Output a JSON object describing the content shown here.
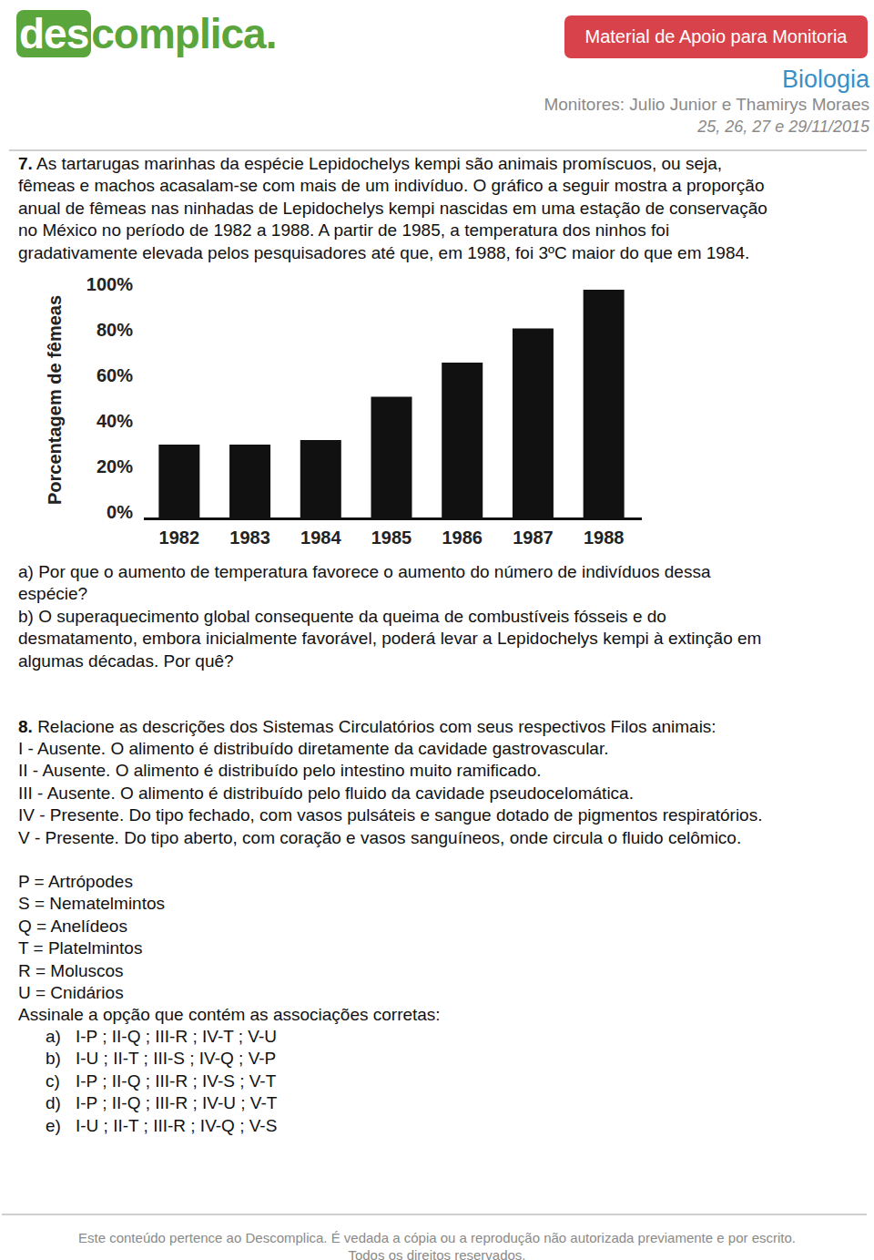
{
  "header": {
    "logo": [
      "des",
      "complica."
    ],
    "badge": "Material de Apoio para Monitoria",
    "subject": "Biologia",
    "monitors": "Monitores: Julio Junior e Thamirys Moraes",
    "dates": "25, 26, 27 e 29/11/2015"
  },
  "questions": [
    {
      "number": "7.",
      "lines": [
        "As tartarugas marinhas da espécie Lepidochelys kempi são animais promíscuos, ou seja,",
        "fêmeas e machos acasalam-se com mais de um indivíduo. O gráfico a seguir mostra a proporção",
        "anual de fêmeas nas ninhadas de Lepidochelys kempi nascidas em uma estação de conservação",
        "no México no período de 1982 a 1988. A partir de 1985, a temperatura dos ninhos foi",
        "gradativamente elevada pelos pesquisadores até que, em 1988, foi 3ºC maior do que em 1984."
      ],
      "items": [
        {
          "lines": [
            "a) Por que o aumento de temperatura favorece o aumento do número de indivíduos dessa",
            "espécie?"
          ]
        },
        {
          "lines": [
            "b) O superaquecimento global consequente da queima de combustíveis fósseis e do",
            "desmatamento, embora inicialmente favorável, poderá levar a Lepidochelys kempi à extinção em",
            "algumas décadas. Por quê?"
          ]
        }
      ]
    },
    {
      "number": "8.",
      "lines": [
        "Relacione as descrições dos Sistemas Circulatórios com seus respectivos Filos animais:"
      ],
      "descriptions": [
        "I - Ausente. O alimento é distribuído diretamente da cavidade gastrovascular.",
        "II - Ausente. O alimento é distribuído pelo intestino muito ramificado.",
        "III - Ausente. O alimento é distribuído pelo fluido da cavidade pseudocelomática.",
        "IV - Presente. Do tipo fechado, com vasos pulsáteis e sangue dotado de pigmentos respiratórios.",
        "V - Presente. Do tipo aberto, com coração e vasos sanguíneos, onde circula o fluido celômico."
      ],
      "phyla": [
        "P = Artrópodes",
        "S = Nematelmintos",
        "Q = Anelídeos",
        "T = Platelmintos",
        "R = Moluscos",
        "U = Cnidários"
      ],
      "prompt": "Assinale a opção que contém as associações corretas:",
      "options": [
        {
          "letter": "a)",
          "text": "I-P ; II-Q ; III-R ; IV-T ; V-U"
        },
        {
          "letter": "b)",
          "text": "I-U ; II-T ; III-S ; IV-Q ; V-P"
        },
        {
          "letter": "c)",
          "text": "I-P ; II-Q ; III-R ; IV-S ; V-T"
        },
        {
          "letter": "d)",
          "text": "I-P ; II-Q ; III-R ; IV-U ; V-T"
        },
        {
          "letter": "e)",
          "text": "I-U ; II-T ; III-R ; IV-Q ; V-S"
        }
      ]
    }
  ],
  "chart_data": {
    "type": "bar",
    "y_label": "Porcentagem de fêmeas",
    "categories": [
      "1982",
      "1983",
      "1984",
      "1985",
      "1986",
      "1987",
      "1988"
    ],
    "values": [
      32,
      32,
      34,
      53,
      68,
      83,
      100
    ],
    "color": "#111111",
    "ylim": [
      0,
      100
    ],
    "yticks": [
      {
        "value": 0,
        "label": "0%"
      },
      {
        "value": 20,
        "label": "20%"
      },
      {
        "value": 40,
        "label": "40%"
      },
      {
        "value": 60,
        "label": "60%"
      },
      {
        "value": 80,
        "label": "80%"
      },
      {
        "value": 100,
        "label": "100%"
      }
    ],
    "grid": false
  },
  "footer": {
    "lines": [
      "Este conteúdo pertence ao Descomplica. É vedada a cópia ou a reprodução não autorizada previamente e por escrito.",
      "Todos os direitos reservados."
    ]
  }
}
